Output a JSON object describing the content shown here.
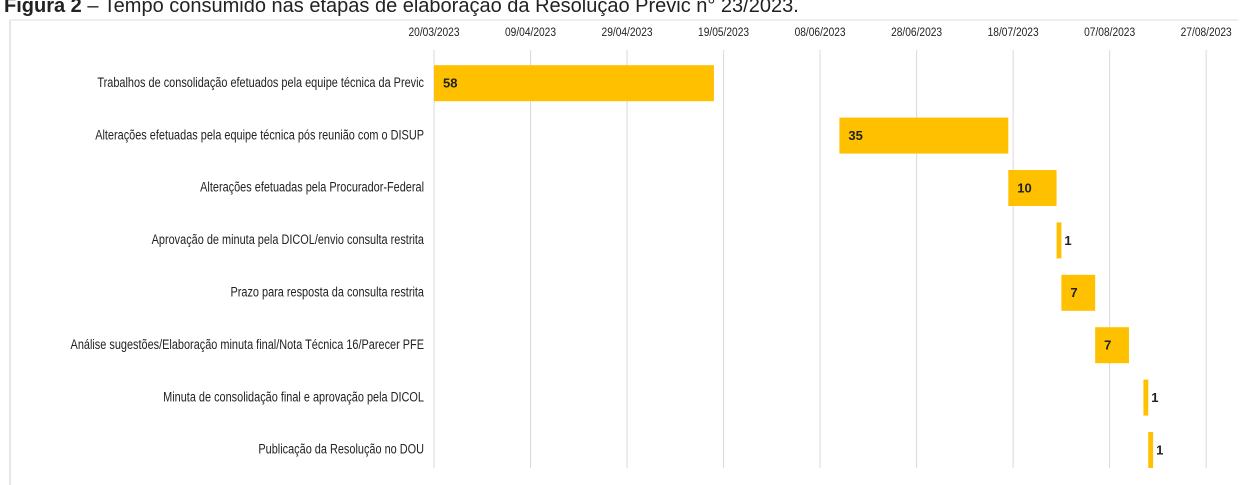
{
  "chart_data": {
    "type": "gantt",
    "figure_label": "Figura 2",
    "title": " – Tempo consumido nas etapas de elaboração da Resolução Previc n° 23/2023.",
    "categories": [
      "Trabalhos de consolidação efetuados pela equipe técnica da Previc",
      "Alterações efetuadas pela equipe técnica pós reunião com o DISUP",
      "Alterações efetuadas pela Procurador-Federal",
      "Aprovação de minuta pela DICOL/envio consulta restrita",
      "Prazo para resposta da consulta restrita",
      "Análise sugestões/Elaboração minuta final/Nota Técnica 16/Parecer PFE",
      "Minuta de consolidação final e aprovação pela DICOL",
      "Publicação da Resolução no DOU"
    ],
    "starts": [
      "20/03/2023",
      "12/06/2023",
      "17/07/2023",
      "27/07/2023",
      "28/07/2023",
      "04/08/2023",
      "14/08/2023",
      "15/08/2023"
    ],
    "values": [
      58,
      35,
      10,
      1,
      7,
      7,
      1,
      1
    ],
    "color": "#FFC000",
    "xlim": [
      "20/03/2023",
      "28/08/2023"
    ],
    "xticks": [
      "20/03/2023",
      "09/04/2023",
      "29/04/2023",
      "19/05/2023",
      "08/06/2023",
      "28/06/2023",
      "18/07/2023",
      "07/08/2023",
      "27/08/2023"
    ],
    "grid": true
  }
}
